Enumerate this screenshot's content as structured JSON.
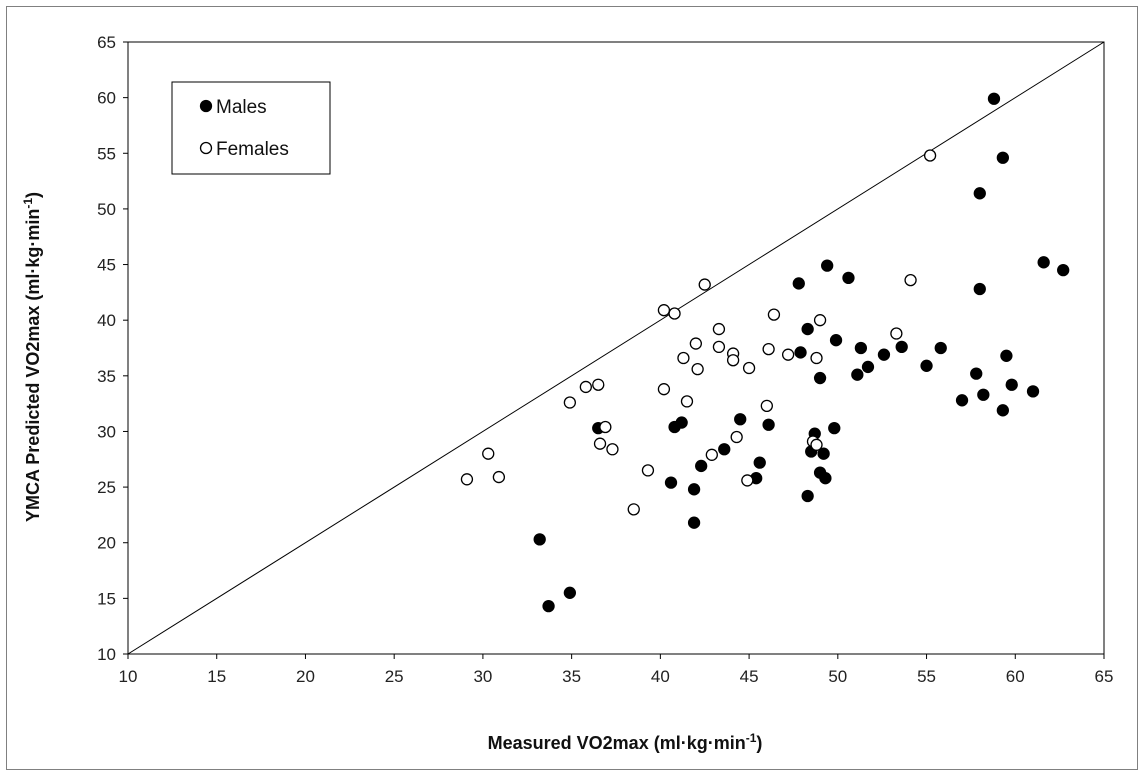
{
  "chart_data": {
    "type": "scatter",
    "xlabel": "Measured VO2max (ml·kg·min",
    "xlabel_sup": "-1",
    "xlabel_end": ")",
    "ylabel": "YMCA Predicted VO2max (ml·kg·min",
    "ylabel_sup": "-1",
    "ylabel_end": ")",
    "xlim": [
      10,
      65
    ],
    "ylim": [
      10,
      65
    ],
    "x_ticks": [
      10,
      15,
      20,
      25,
      30,
      35,
      40,
      45,
      50,
      55,
      60,
      65
    ],
    "y_ticks": [
      10,
      15,
      20,
      25,
      30,
      35,
      40,
      45,
      50,
      55,
      60,
      65
    ],
    "reference_line": "identity",
    "grid": false,
    "legend_position": "top-left",
    "series": [
      {
        "name": "Males",
        "marker": "filled-circle",
        "color": "#000000",
        "points": [
          [
            58.8,
            59.9
          ],
          [
            59.3,
            54.6
          ],
          [
            58.0,
            51.4
          ],
          [
            58.0,
            42.8
          ],
          [
            61.6,
            45.2
          ],
          [
            62.7,
            44.5
          ],
          [
            49.4,
            44.9
          ],
          [
            50.6,
            43.8
          ],
          [
            47.8,
            43.3
          ],
          [
            48.3,
            39.2
          ],
          [
            47.9,
            37.1
          ],
          [
            49.9,
            38.2
          ],
          [
            51.3,
            37.5
          ],
          [
            53.6,
            37.6
          ],
          [
            52.6,
            36.9
          ],
          [
            55.8,
            37.5
          ],
          [
            59.5,
            36.8
          ],
          [
            51.7,
            35.8
          ],
          [
            51.1,
            35.1
          ],
          [
            49.0,
            34.8
          ],
          [
            55.0,
            35.9
          ],
          [
            57.8,
            35.2
          ],
          [
            59.8,
            34.2
          ],
          [
            58.2,
            33.3
          ],
          [
            61.0,
            33.6
          ],
          [
            57.0,
            32.8
          ],
          [
            59.3,
            31.9
          ],
          [
            49.8,
            30.3
          ],
          [
            49.2,
            28.0
          ],
          [
            48.7,
            29.8
          ],
          [
            48.5,
            28.2
          ],
          [
            49.0,
            26.3
          ],
          [
            49.3,
            25.8
          ],
          [
            48.3,
            24.2
          ],
          [
            46.1,
            30.6
          ],
          [
            44.5,
            31.1
          ],
          [
            43.6,
            28.4
          ],
          [
            41.2,
            30.8
          ],
          [
            40.8,
            30.4
          ],
          [
            42.3,
            26.9
          ],
          [
            45.6,
            27.2
          ],
          [
            45.4,
            25.8
          ],
          [
            40.6,
            25.4
          ],
          [
            41.9,
            24.8
          ],
          [
            41.9,
            21.8
          ],
          [
            36.5,
            30.3
          ],
          [
            33.2,
            20.3
          ],
          [
            33.7,
            14.3
          ],
          [
            34.9,
            15.5
          ]
        ]
      },
      {
        "name": "Females",
        "marker": "open-circle",
        "color": "#000000",
        "points": [
          [
            55.2,
            54.8
          ],
          [
            54.1,
            43.6
          ],
          [
            53.3,
            38.8
          ],
          [
            49.0,
            40.0
          ],
          [
            46.4,
            40.5
          ],
          [
            42.5,
            43.2
          ],
          [
            40.2,
            40.9
          ],
          [
            40.8,
            40.6
          ],
          [
            43.3,
            39.2
          ],
          [
            42.0,
            37.9
          ],
          [
            43.3,
            37.6
          ],
          [
            44.1,
            37.0
          ],
          [
            44.1,
            36.4
          ],
          [
            41.3,
            36.6
          ],
          [
            46.1,
            37.4
          ],
          [
            47.2,
            36.9
          ],
          [
            48.8,
            36.6
          ],
          [
            42.1,
            35.6
          ],
          [
            45.0,
            35.7
          ],
          [
            40.2,
            33.8
          ],
          [
            41.5,
            32.7
          ],
          [
            46.0,
            32.3
          ],
          [
            44.3,
            29.5
          ],
          [
            42.9,
            27.9
          ],
          [
            44.9,
            25.6
          ],
          [
            48.6,
            29.1
          ],
          [
            48.8,
            28.8
          ],
          [
            39.3,
            26.5
          ],
          [
            38.5,
            23.0
          ],
          [
            36.5,
            34.2
          ],
          [
            35.8,
            34.0
          ],
          [
            34.9,
            32.6
          ],
          [
            36.9,
            30.4
          ],
          [
            36.6,
            28.9
          ],
          [
            37.3,
            28.4
          ],
          [
            30.3,
            28.0
          ],
          [
            29.1,
            25.7
          ],
          [
            30.9,
            25.9
          ]
        ]
      }
    ]
  }
}
